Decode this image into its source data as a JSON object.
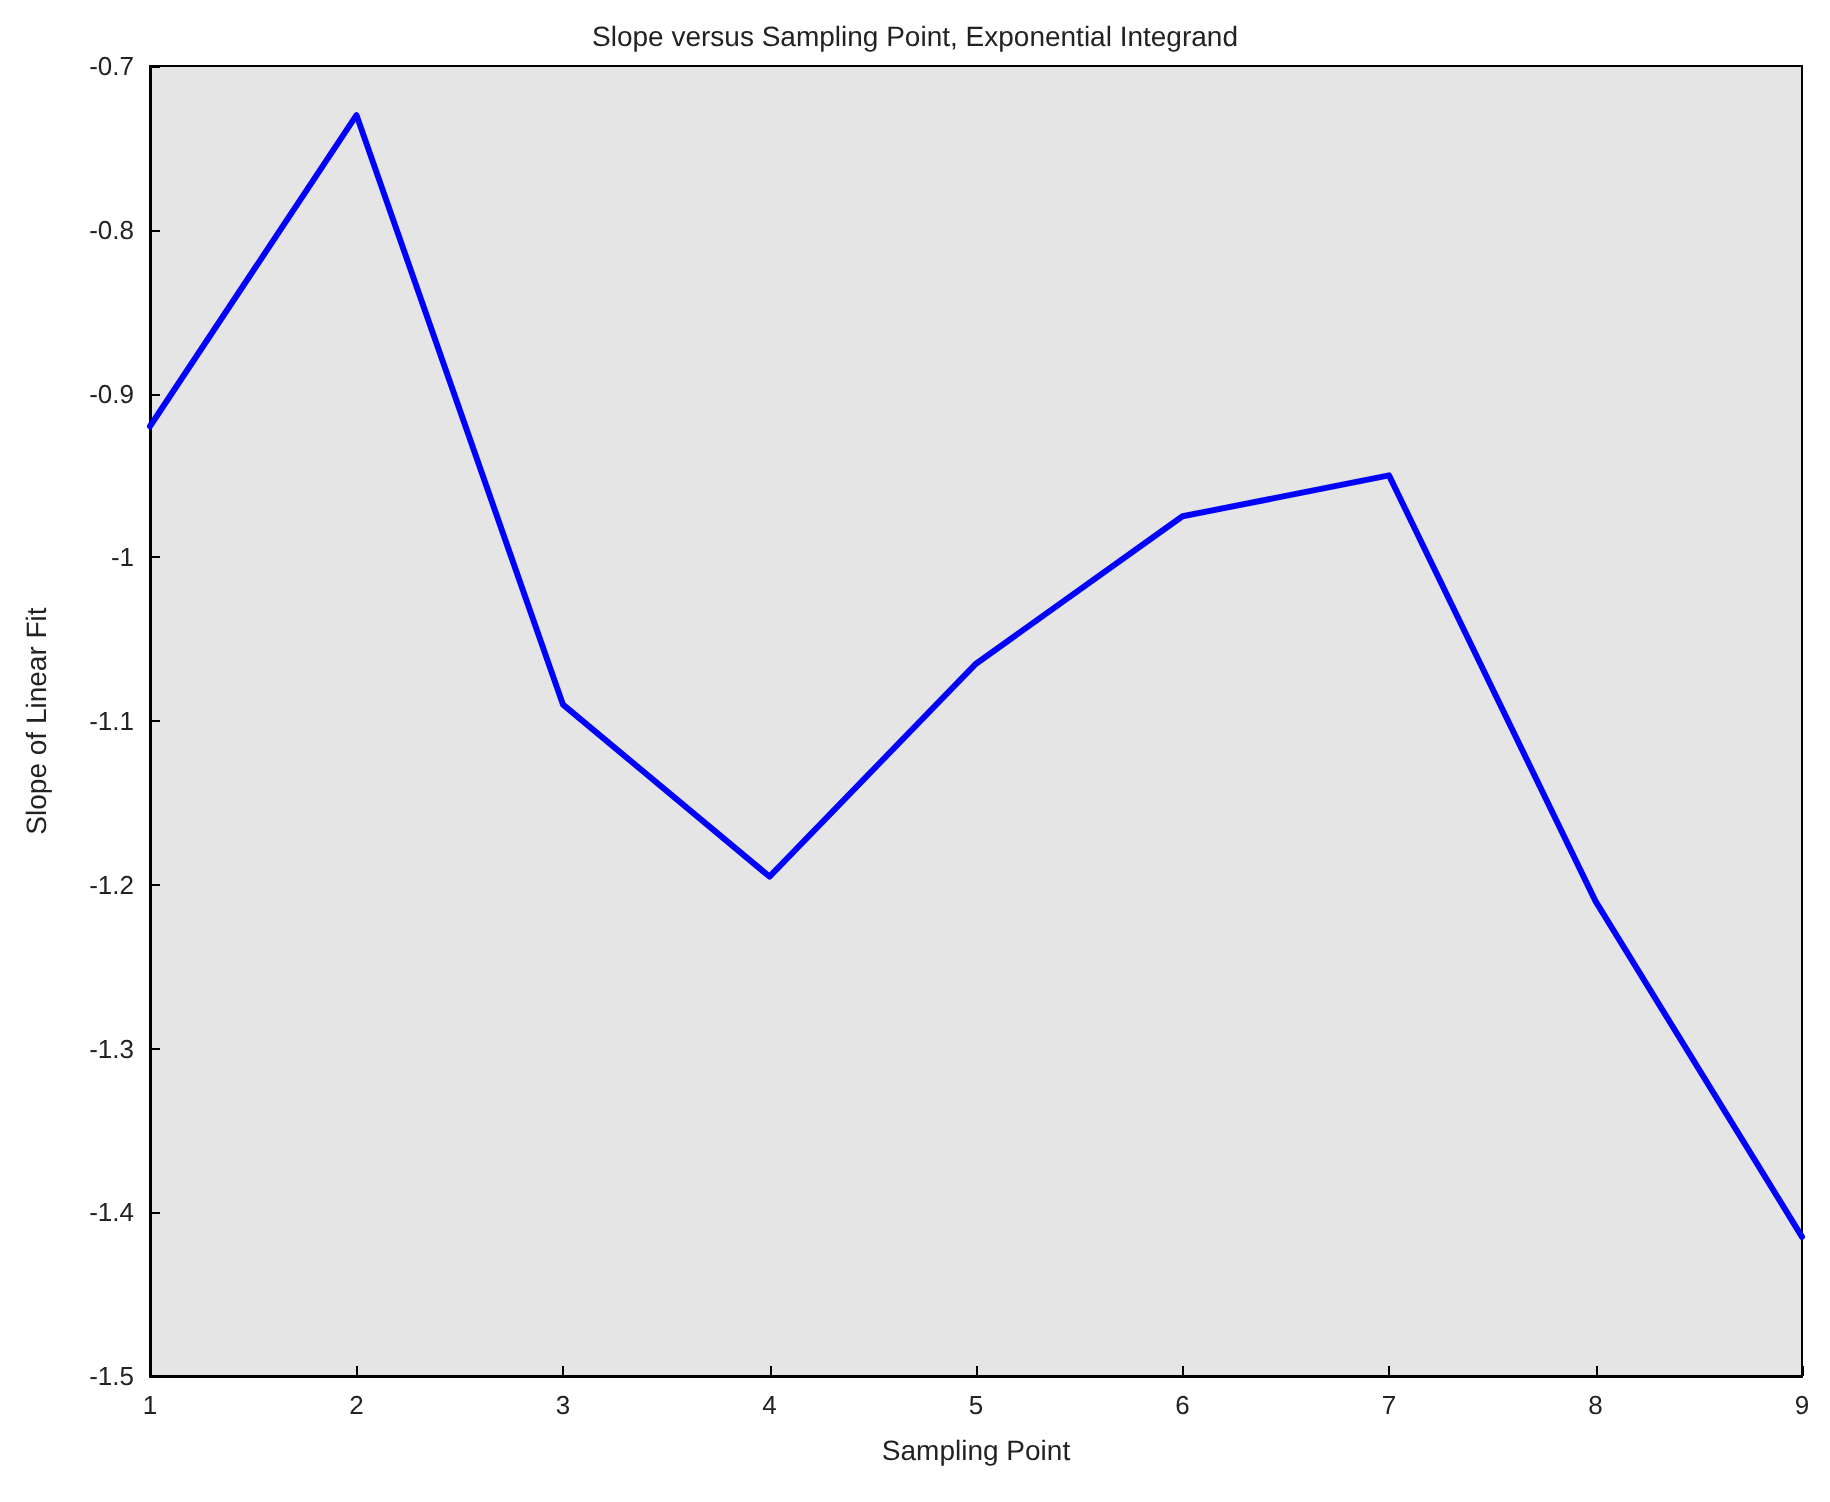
{
  "chart_data": {
    "type": "line",
    "title": "Slope versus Sampling Point, Exponential Integrand",
    "xlabel": "Sampling Point",
    "ylabel": "Slope of Linear Fit",
    "x": [
      1,
      2,
      3,
      4,
      5,
      6,
      7,
      8,
      9
    ],
    "series": [
      {
        "color": "#0000ff",
        "values": [
          -0.92,
          -0.73,
          -1.09,
          -1.195,
          -1.065,
          -0.975,
          -0.95,
          -1.21,
          -1.415
        ]
      }
    ],
    "xlim": [
      1,
      9
    ],
    "xticks": [
      1,
      2,
      3,
      4,
      5,
      6,
      7,
      8,
      9
    ],
    "ylim": [
      -1.5,
      -0.7
    ],
    "yticks": [
      -1.5,
      -1.4,
      -1.3,
      -1.2,
      -1.1,
      -1,
      -0.9,
      -0.8,
      -0.7
    ],
    "grid": false,
    "marker": "none",
    "line_style": "solid"
  }
}
